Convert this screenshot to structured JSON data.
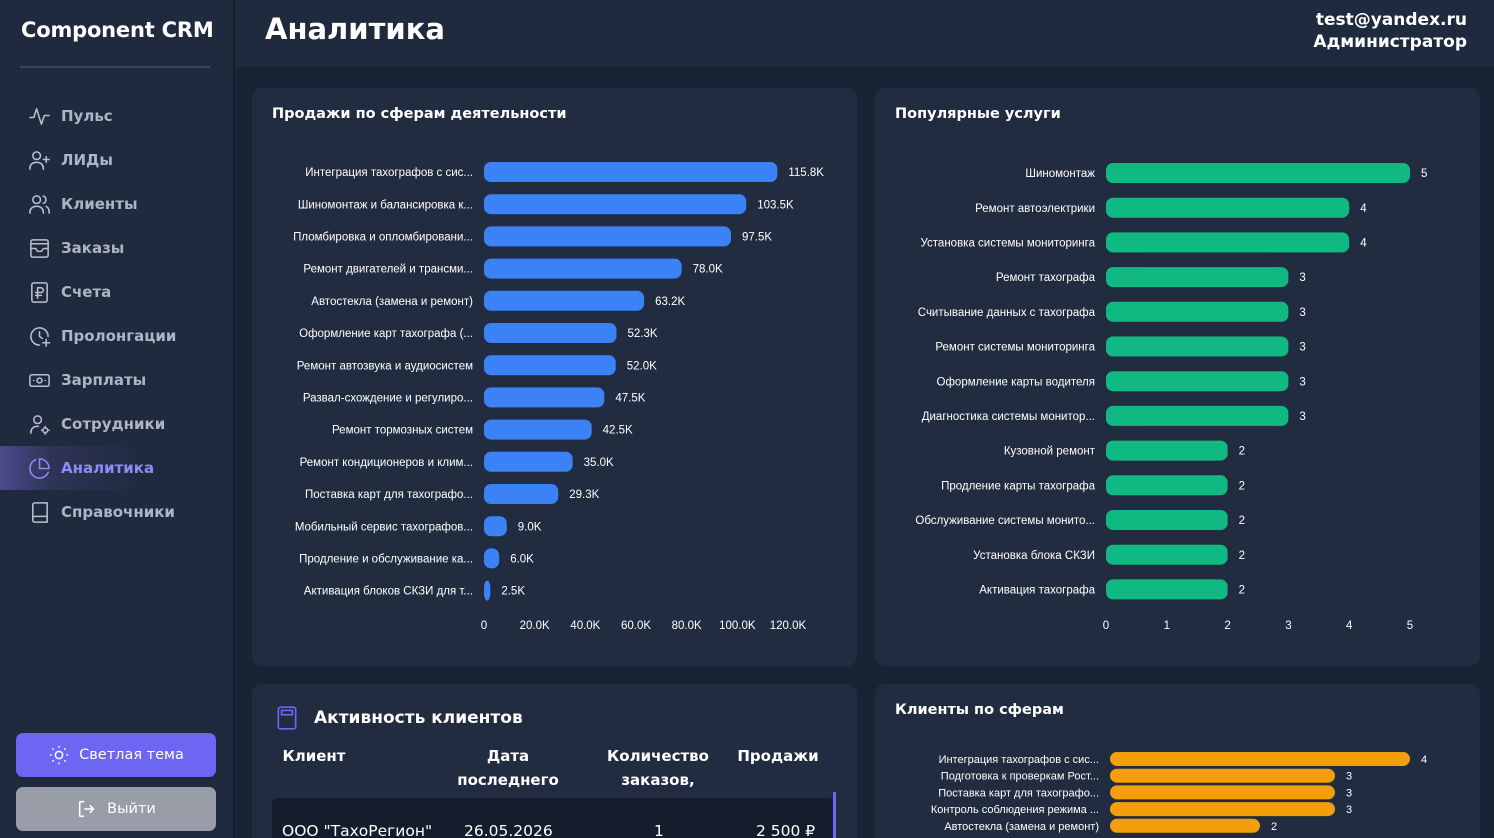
{
  "app": {
    "brand": "Component CRM"
  },
  "header": {
    "title": "Аналитика",
    "user_email": "test@yandex.ru",
    "user_role": "Администратор"
  },
  "sidebar": {
    "items": [
      {
        "label": "Пульс",
        "icon": "pulse-icon"
      },
      {
        "label": "ЛИДы",
        "icon": "user-plus-icon"
      },
      {
        "label": "Клиенты",
        "icon": "users-icon"
      },
      {
        "label": "Заказы",
        "icon": "inbox-icon"
      },
      {
        "label": "Счета",
        "icon": "ruble-invoice-icon"
      },
      {
        "label": "Пролонгации",
        "icon": "clock-plus-icon"
      },
      {
        "label": "Зарплаты",
        "icon": "banknote-icon"
      },
      {
        "label": "Сотрудники",
        "icon": "user-gear-icon"
      },
      {
        "label": "Аналитика",
        "icon": "pie-chart-icon",
        "active": true
      },
      {
        "label": "Справочники",
        "icon": "book-icon"
      }
    ],
    "theme_button": "Светлая тема",
    "logout_button": "Выйти"
  },
  "colors": {
    "accent": "#6d66f2",
    "blue_bar": "#3b82f6",
    "green_bar": "#10b981",
    "orange_bar": "#f59e0b"
  },
  "sales_card": {
    "title": "Продажи по сферам деятельности"
  },
  "services_card": {
    "title": "Популярные услуги"
  },
  "clients_card": {
    "title": "Клиенты по сферам"
  },
  "activity": {
    "title": "Активность клиентов",
    "columns": [
      "Клиент",
      "Дата последнего заказа",
      "Количество заказов, шт.",
      "Продажи"
    ],
    "rows": [
      {
        "client": "ООО \"ТахоРегион\"",
        "date": "26.05.2026",
        "count": "1",
        "sales": "2 500 ₽"
      }
    ]
  },
  "chart_data": [
    {
      "type": "bar",
      "orientation": "horizontal",
      "title": "Продажи по сферам деятельности",
      "categories": [
        "Интеграция тахографов с сис...",
        "Шиномонтаж и балансировка к...",
        "Пломбировка и опломбировани...",
        "Ремонт двигателей и трансми...",
        "Автостекла (замена и ремонт)",
        "Оформление карт тахографа (...",
        "Ремонт автозвука и аудиосистем",
        "Развал-схождение и регулиро...",
        "Ремонт тормозных систем",
        "Ремонт кондиционеров и клим...",
        "Поставка карт для тахографо...",
        "Мобильный сервис тахографов...",
        "Продление и обслуживание ка...",
        "Активация блоков СКЗИ для т..."
      ],
      "values": [
        115800,
        103500,
        97500,
        78000,
        63200,
        52300,
        52000,
        47500,
        42500,
        35000,
        29300,
        9000,
        6000,
        2500
      ],
      "value_labels": [
        "115.8K",
        "103.5K",
        "97.5K",
        "78.0K",
        "63.2K",
        "52.3K",
        "52.0K",
        "47.5K",
        "42.5K",
        "35.0K",
        "29.3K",
        "9.0K",
        "6.0K",
        "2.5K"
      ],
      "xlim": [
        0,
        120000
      ],
      "xticks": [
        "0",
        "20.0K",
        "40.0K",
        "60.0K",
        "80.0K",
        "100.0K",
        "120.0K"
      ],
      "color": "#3b82f6"
    },
    {
      "type": "bar",
      "orientation": "horizontal",
      "title": "Популярные услуги",
      "categories": [
        "Шиномонтаж",
        "Ремонт автоэлектрики",
        "Установка системы мониторинга",
        "Ремонт тахографа",
        "Считывание данных с тахографа",
        "Ремонт системы мониторинга",
        "Оформление карты водителя",
        "Диагностика системы монитор...",
        "Кузовной ремонт",
        "Продление карты тахографа",
        "Обслуживание системы монито...",
        "Установка блока СКЗИ",
        "Активация тахографа"
      ],
      "values": [
        5,
        4,
        4,
        3,
        3,
        3,
        3,
        3,
        2,
        2,
        2,
        2,
        2
      ],
      "xlim": [
        0,
        5
      ],
      "xticks": [
        "0",
        "1",
        "2",
        "3",
        "4",
        "5"
      ],
      "color": "#10b981"
    },
    {
      "type": "bar",
      "orientation": "horizontal",
      "title": "Клиенты по сферам",
      "categories": [
        "Интеграция тахографов с сис...",
        "Подготовка к проверкам Рост...",
        "Поставка карт для тахографо...",
        "Контроль соблюдения режима ...",
        "Автостекла (замена и ремонт)"
      ],
      "values": [
        4,
        3,
        3,
        3,
        2
      ],
      "xlim": [
        0,
        4
      ],
      "color": "#f59e0b"
    }
  ]
}
